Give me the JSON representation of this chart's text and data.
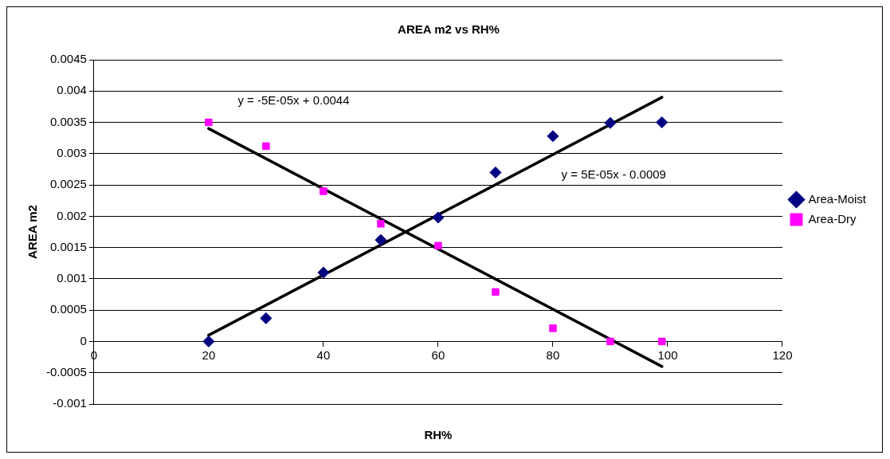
{
  "chart_data": {
    "type": "scatter",
    "title": "AREA m2 vs RH%",
    "xlabel": "RH%",
    "ylabel": "AREA m2",
    "xlim": [
      0,
      120
    ],
    "xticks": [
      0,
      20,
      40,
      60,
      80,
      100,
      120
    ],
    "ylim": [
      -0.001,
      0.0045
    ],
    "yticks": [
      -0.001,
      -0.0005,
      0,
      0.0005,
      0.001,
      0.0015,
      0.002,
      0.0025,
      0.003,
      0.0035,
      0.004,
      0.0045
    ],
    "grid": "y",
    "legend": "right",
    "series": [
      {
        "name": "Area-Moist",
        "color": "#000080",
        "marker": "diamond",
        "x": [
          20,
          30,
          40,
          50,
          60,
          70,
          80,
          90,
          99
        ],
        "values": [
          0,
          0.00037,
          0.0011,
          0.00162,
          0.00198,
          0.0027,
          0.00328,
          0.00349,
          0.0035
        ]
      },
      {
        "name": "Area-Dry",
        "color": "#ff00ff",
        "marker": "square",
        "x": [
          20,
          30,
          40,
          50,
          60,
          70,
          80,
          90,
          99
        ],
        "values": [
          0.0035,
          0.00312,
          0.0024,
          0.00188,
          0.00153,
          0.00079,
          0.00021,
          0,
          0
        ]
      },
      {
        "type": "line",
        "color": "#000000",
        "marker": "none",
        "x": [
          20,
          99
        ],
        "values": [
          0.0001,
          0.0039
        ]
      },
      {
        "type": "line",
        "color": "#000000",
        "marker": "none",
        "x": [
          20,
          99
        ],
        "values": [
          0.0034,
          -0.0004
        ]
      }
    ],
    "annotations": [
      "y = -5E-05x + 0.0044",
      "y = 5E-05x - 0.0009"
    ]
  }
}
